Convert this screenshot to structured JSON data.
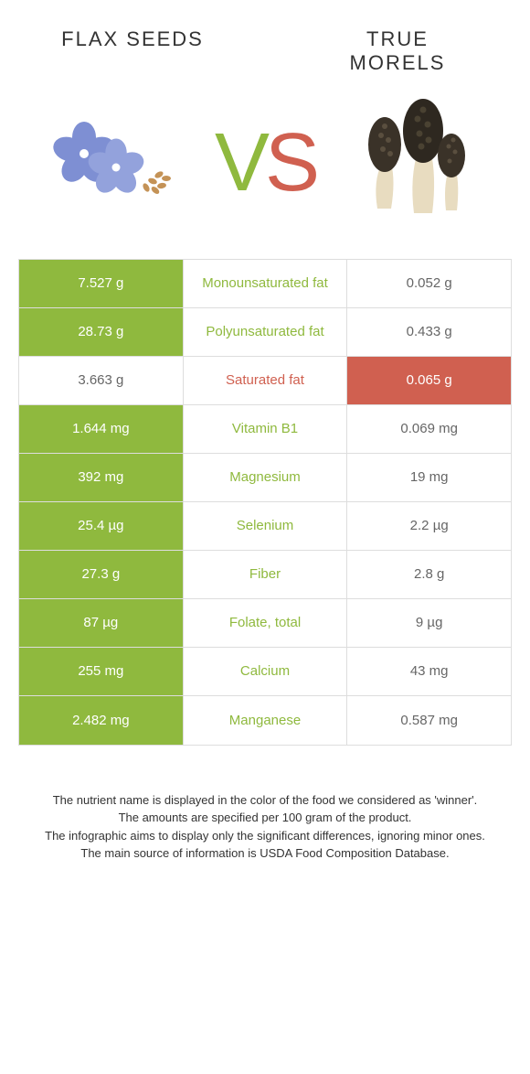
{
  "left_title": "FLAX SEEDS",
  "right_title": "TRUE MORELS",
  "vs_v": "V",
  "vs_s": "S",
  "colors": {
    "left_accent": "#8fb93e",
    "right_accent": "#d06050",
    "border": "#dddddd",
    "text": "#333333",
    "cell_text": "#666666",
    "background": "#ffffff"
  },
  "rows": [
    {
      "left": "7.527 g",
      "nutrient": "Monounsaturated fat",
      "right": "0.052 g",
      "winner": "left"
    },
    {
      "left": "28.73 g",
      "nutrient": "Polyunsaturated fat",
      "right": "0.433 g",
      "winner": "left"
    },
    {
      "left": "3.663 g",
      "nutrient": "Saturated fat",
      "right": "0.065 g",
      "winner": "right"
    },
    {
      "left": "1.644 mg",
      "nutrient": "Vitamin B1",
      "right": "0.069 mg",
      "winner": "left"
    },
    {
      "left": "392 mg",
      "nutrient": "Magnesium",
      "right": "19 mg",
      "winner": "left"
    },
    {
      "left": "25.4 µg",
      "nutrient": "Selenium",
      "right": "2.2 µg",
      "winner": "left"
    },
    {
      "left": "27.3 g",
      "nutrient": "Fiber",
      "right": "2.8 g",
      "winner": "left"
    },
    {
      "left": "87 µg",
      "nutrient": "Folate, total",
      "right": "9 µg",
      "winner": "left"
    },
    {
      "left": "255 mg",
      "nutrient": "Calcium",
      "right": "43 mg",
      "winner": "left"
    },
    {
      "left": "2.482 mg",
      "nutrient": "Manganese",
      "right": "0.587 mg",
      "winner": "left"
    }
  ],
  "footer": {
    "line1": "The nutrient name is displayed in the color of the food we considered as 'winner'.",
    "line2": "The amounts are specified per 100 gram of the product.",
    "line3": "The infographic aims to display only the significant differences, ignoring minor ones.",
    "line4": "The main source of information is USDA Food Composition Database."
  }
}
